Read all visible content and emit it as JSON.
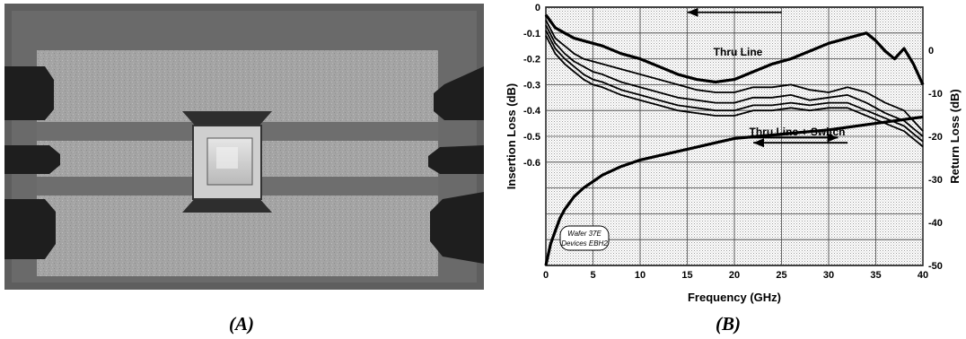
{
  "panel_a": {
    "caption": "(A)",
    "description_icon": "microwave-switch-die-photo"
  },
  "panel_b": {
    "caption": "(B)"
  },
  "chart_data": {
    "type": "line",
    "xlabel": "Frequency (GHz)",
    "ylabel": "Insertion Loss (dB)",
    "y2label": "Return Loss (dB)",
    "xlim": [
      0,
      40
    ],
    "ylim": [
      -0.7,
      0
    ],
    "y2lim": [
      -50,
      10
    ],
    "x_ticks": [
      "0",
      "5",
      "10",
      "15",
      "20",
      "25",
      "30",
      "35",
      "40"
    ],
    "y_ticks": [
      "0",
      "-0.1",
      "-0.2",
      "-0.3",
      "-0.4",
      "-0.5",
      "-0.6"
    ],
    "y2_ticks": [
      "0",
      "-10",
      "-20",
      "-30",
      "-40",
      "-50"
    ],
    "grid": true,
    "annotations": [
      {
        "text": "Thru Line",
        "x": 22.5,
        "y": -0.185
      },
      {
        "text": "Thru Line + Switch",
        "x": 27.5,
        "y": -0.485
      },
      {
        "text": "Wafer 37E",
        "x": 2.9,
        "y2": -38.5
      },
      {
        "text": "Devices EBH2",
        "x": 2.9,
        "y2": -42.5
      }
    ],
    "series": [
      {
        "axis": "left",
        "style": "thick",
        "x": [
          0,
          1,
          2,
          3,
          4,
          5,
          6,
          8,
          10,
          12,
          14,
          16,
          18,
          20,
          22,
          24,
          26,
          28,
          30,
          32,
          33,
          34,
          35,
          36,
          37,
          38,
          39,
          40
        ],
        "values": [
          -0.03,
          -0.08,
          -0.1,
          -0.12,
          -0.13,
          -0.14,
          -0.15,
          -0.18,
          -0.2,
          -0.23,
          -0.26,
          -0.28,
          -0.29,
          -0.28,
          -0.25,
          -0.22,
          -0.2,
          -0.17,
          -0.14,
          -0.12,
          -0.11,
          -0.1,
          -0.13,
          -0.17,
          -0.2,
          -0.16,
          -0.22,
          -0.3
        ]
      },
      {
        "axis": "left",
        "style": "thin",
        "x": [
          0,
          1,
          2,
          3,
          4,
          5,
          6,
          8,
          10,
          12,
          14,
          16,
          18,
          20,
          22,
          24,
          26,
          28,
          30,
          32,
          34,
          36,
          38,
          40
        ],
        "values": [
          -0.05,
          -0.12,
          -0.15,
          -0.18,
          -0.2,
          -0.21,
          -0.22,
          -0.24,
          -0.26,
          -0.28,
          -0.3,
          -0.32,
          -0.33,
          -0.33,
          -0.31,
          -0.31,
          -0.3,
          -0.32,
          -0.33,
          -0.31,
          -0.33,
          -0.37,
          -0.4,
          -0.48
        ]
      },
      {
        "axis": "left",
        "style": "thin",
        "x": [
          0,
          1,
          2,
          3,
          4,
          5,
          6,
          8,
          10,
          12,
          14,
          16,
          18,
          20,
          22,
          24,
          26,
          28,
          30,
          32,
          34,
          36,
          38,
          40
        ],
        "values": [
          -0.07,
          -0.14,
          -0.18,
          -0.21,
          -0.23,
          -0.25,
          -0.26,
          -0.29,
          -0.31,
          -0.33,
          -0.35,
          -0.36,
          -0.37,
          -0.37,
          -0.35,
          -0.35,
          -0.34,
          -0.36,
          -0.35,
          -0.34,
          -0.37,
          -0.41,
          -0.44,
          -0.5
        ]
      },
      {
        "axis": "left",
        "style": "thin",
        "x": [
          0,
          1,
          2,
          3,
          4,
          5,
          6,
          8,
          10,
          12,
          14,
          16,
          18,
          20,
          22,
          24,
          26,
          28,
          30,
          32,
          34,
          36,
          38,
          40
        ],
        "values": [
          -0.09,
          -0.16,
          -0.2,
          -0.23,
          -0.26,
          -0.28,
          -0.29,
          -0.32,
          -0.34,
          -0.36,
          -0.38,
          -0.39,
          -0.4,
          -0.4,
          -0.38,
          -0.38,
          -0.37,
          -0.38,
          -0.37,
          -0.37,
          -0.4,
          -0.43,
          -0.46,
          -0.52
        ]
      },
      {
        "axis": "left",
        "style": "thin",
        "x": [
          0,
          1,
          2,
          3,
          4,
          5,
          6,
          8,
          10,
          12,
          14,
          16,
          18,
          20,
          22,
          24,
          26,
          28,
          30,
          32,
          34,
          36,
          38,
          40
        ],
        "values": [
          -0.11,
          -0.18,
          -0.22,
          -0.25,
          -0.28,
          -0.3,
          -0.31,
          -0.34,
          -0.36,
          -0.38,
          -0.4,
          -0.41,
          -0.42,
          -0.42,
          -0.4,
          -0.4,
          -0.39,
          -0.4,
          -0.39,
          -0.39,
          -0.42,
          -0.45,
          -0.48,
          -0.54
        ]
      },
      {
        "axis": "right",
        "style": "thick",
        "x": [
          0,
          0.5,
          1,
          1.5,
          2,
          3,
          4,
          5,
          6,
          8,
          10,
          12,
          15,
          18,
          20,
          25,
          30,
          35,
          40
        ],
        "values": [
          -50,
          -45,
          -42,
          -39,
          -37,
          -34,
          -32,
          -30.5,
          -29,
          -27,
          -25.5,
          -24.5,
          -23,
          -21.5,
          -20.5,
          -19.5,
          -18.5,
          -17,
          -15.5
        ]
      }
    ],
    "arrows": [
      {
        "from": [
          25,
          -0.02
        ],
        "to": [
          15,
          -0.02
        ],
        "axis": "left"
      },
      {
        "from": [
          32,
          -0.525
        ],
        "to": [
          22,
          -0.525
        ],
        "axis": "left"
      },
      {
        "from": [
          21,
          -20.3
        ],
        "to": [
          31,
          -20.3
        ],
        "axis": "right"
      }
    ]
  }
}
